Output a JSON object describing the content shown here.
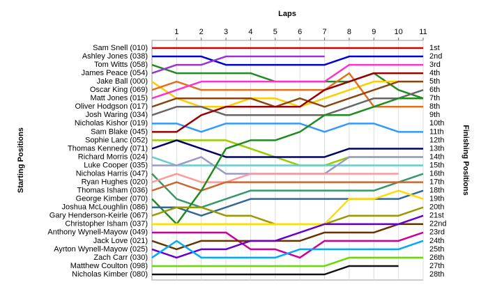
{
  "chart_data": {
    "type": "line",
    "x_label": "Laps",
    "y_label": "Starting Positions",
    "y2_label": "Finishing Positions",
    "x": [
      0,
      1,
      2,
      3,
      4,
      5,
      6,
      7,
      8,
      9,
      10,
      11
    ],
    "xlim": [
      0,
      11
    ],
    "xticks": [
      1,
      2,
      3,
      4,
      5,
      6,
      7,
      8,
      9,
      10,
      11
    ],
    "ylim": [
      1,
      28
    ],
    "grid": true,
    "y2_labels": [
      "1st",
      "2nd",
      "3rd",
      "4th",
      "5th",
      "6th",
      "7th",
      "8th",
      "9th",
      "10th",
      "11th",
      "12th",
      "13th",
      "14th",
      "15th",
      "16th",
      "17th",
      "18th",
      "19th",
      "20th",
      "21st",
      "22nd",
      "23rd",
      "24th",
      "25th",
      "26th",
      "27th",
      "28th"
    ],
    "series": [
      {
        "name": "Sam Snell (010)",
        "color": "#cc0000",
        "values": [
          1,
          1,
          1,
          1,
          1,
          1,
          1,
          1,
          1,
          1,
          1,
          1
        ]
      },
      {
        "name": "Ashley Jones (038)",
        "color": "#0000cc",
        "values": [
          2,
          2,
          2,
          3,
          3,
          3,
          3,
          3,
          2,
          2,
          2,
          2
        ]
      },
      {
        "name": "Tom Witts (058)",
        "color": "#228b22",
        "values": [
          3,
          4,
          4,
          4,
          4,
          5,
          5,
          5,
          5,
          4,
          6,
          7
        ]
      },
      {
        "name": "James Peace (054)",
        "color": "#9933cc",
        "values": [
          4,
          3,
          3,
          2,
          2,
          2,
          2,
          2,
          null,
          null,
          null,
          null
        ]
      },
      {
        "name": "Jake Ball (000)",
        "color": "#ffcc00",
        "values": [
          5,
          7,
          8,
          8,
          7,
          7,
          8,
          7,
          6,
          5,
          5,
          5
        ]
      },
      {
        "name": "Oscar King (069)",
        "color": "#e07020",
        "values": [
          6,
          5,
          6,
          6,
          6,
          6,
          6,
          6,
          4,
          8,
          8,
          8
        ]
      },
      {
        "name": "Matt Jones (015)",
        "color": "#ff33cc",
        "values": [
          7,
          6,
          5,
          5,
          5,
          5,
          5,
          5,
          3,
          3,
          3,
          3
        ]
      },
      {
        "name": "Oliver Hodgson (017)",
        "color": "#8b4513",
        "values": [
          8,
          7,
          7,
          7,
          7,
          8,
          7,
          8,
          7,
          6,
          5,
          5
        ]
      },
      {
        "name": "Josh Waring (034)",
        "color": "#666666",
        "values": [
          9,
          8,
          8,
          9,
          9,
          9,
          9,
          9,
          8,
          7,
          7,
          6
        ]
      },
      {
        "name": "Nicholas Kishor (019)",
        "color": "#3399ff",
        "values": [
          10,
          10,
          11,
          10,
          10,
          10,
          10,
          11,
          10,
          10,
          11,
          11
        ]
      },
      {
        "name": "Sam Blake (045)",
        "color": "#990000",
        "values": [
          11,
          11,
          9,
          8,
          8,
          8,
          8,
          6,
          5,
          4,
          4,
          4
        ]
      },
      {
        "name": "Sophie Lanc (052)",
        "color": "#99cc00",
        "values": [
          12,
          12,
          12,
          12,
          13,
          14,
          15,
          15,
          14,
          14,
          14,
          14
        ]
      },
      {
        "name": "Thomas Kennedy (071)",
        "color": "#000066",
        "values": [
          13,
          12,
          13,
          14,
          14,
          14,
          14,
          14,
          13,
          13,
          13,
          13
        ]
      },
      {
        "name": "Richard Morris (024)",
        "color": "#66cccc",
        "values": [
          14,
          15,
          15,
          15,
          15,
          15,
          15,
          15,
          15,
          15,
          15,
          15
        ]
      },
      {
        "name": "Luke Cooper (035)",
        "color": "#9999cc",
        "values": [
          15,
          15,
          14,
          16,
          16,
          16,
          16,
          16,
          14,
          14,
          14,
          14
        ]
      },
      {
        "name": "Nicholas Harris (047)",
        "color": "#339966",
        "values": [
          16,
          19,
          20,
          19,
          18,
          18,
          18,
          18,
          18,
          18,
          17,
          16
        ]
      },
      {
        "name": "Ryan Hughes (020)",
        "color": "#ff9999",
        "values": [
          17,
          16,
          17,
          17,
          16,
          16,
          16,
          16,
          16,
          16,
          16,
          null
        ]
      },
      {
        "name": "Thomas Isham (036)",
        "color": "#cc6633",
        "values": [
          18,
          17,
          18,
          17,
          17,
          17,
          17,
          17,
          17,
          17,
          17,
          17
        ]
      },
      {
        "name": "George Kimber (070)",
        "color": "#1e8c1e",
        "values": [
          19,
          22,
          18,
          13,
          12,
          12,
          11,
          9,
          9,
          8,
          7,
          7
        ]
      },
      {
        "name": "Joshua McLoughlin (086)",
        "color": "#336699",
        "values": [
          20,
          20,
          21,
          20,
          19,
          19,
          19,
          19,
          19,
          19,
          19,
          18
        ]
      },
      {
        "name": "Gary Henderson-Keirle (067)",
        "color": "#999900",
        "values": [
          21,
          20,
          20,
          21,
          21,
          22,
          22,
          22,
          21,
          21,
          21,
          20
        ]
      },
      {
        "name": "Christopher Isham (037)",
        "color": "#ffdd00",
        "values": [
          22,
          22,
          22,
          22,
          22,
          22,
          22,
          22,
          19,
          19,
          18,
          19
        ]
      },
      {
        "name": "Anthony Wynell-Mayow (049)",
        "color": "#cc0099",
        "values": [
          23,
          23,
          23,
          23,
          25,
          25,
          26,
          24,
          24,
          24,
          24,
          23
        ]
      },
      {
        "name": "Jack Love (021)",
        "color": "#663300",
        "values": [
          24,
          25,
          24,
          24,
          24,
          24,
          24,
          23,
          23,
          23,
          22,
          22
        ]
      },
      {
        "name": "Ayrton Wynell-Mayow (025)",
        "color": "#6600cc",
        "values": [
          25,
          26,
          25,
          25,
          24,
          24,
          23,
          22,
          22,
          22,
          22,
          21
        ]
      },
      {
        "name": "Zach Carr (030)",
        "color": "#00aaff",
        "values": [
          26,
          24,
          26,
          26,
          26,
          26,
          25,
          25,
          25,
          25,
          25,
          24
        ]
      },
      {
        "name": "Matthew Coulton (098)",
        "color": "#66dd00",
        "values": [
          27,
          27,
          27,
          27,
          27,
          27,
          27,
          27,
          26,
          26,
          26,
          26
        ]
      },
      {
        "name": "Nicholas Kimber (080)",
        "color": "#111111",
        "values": [
          28,
          28,
          28,
          28,
          28,
          28,
          28,
          28,
          27,
          27,
          27,
          null
        ]
      }
    ]
  }
}
